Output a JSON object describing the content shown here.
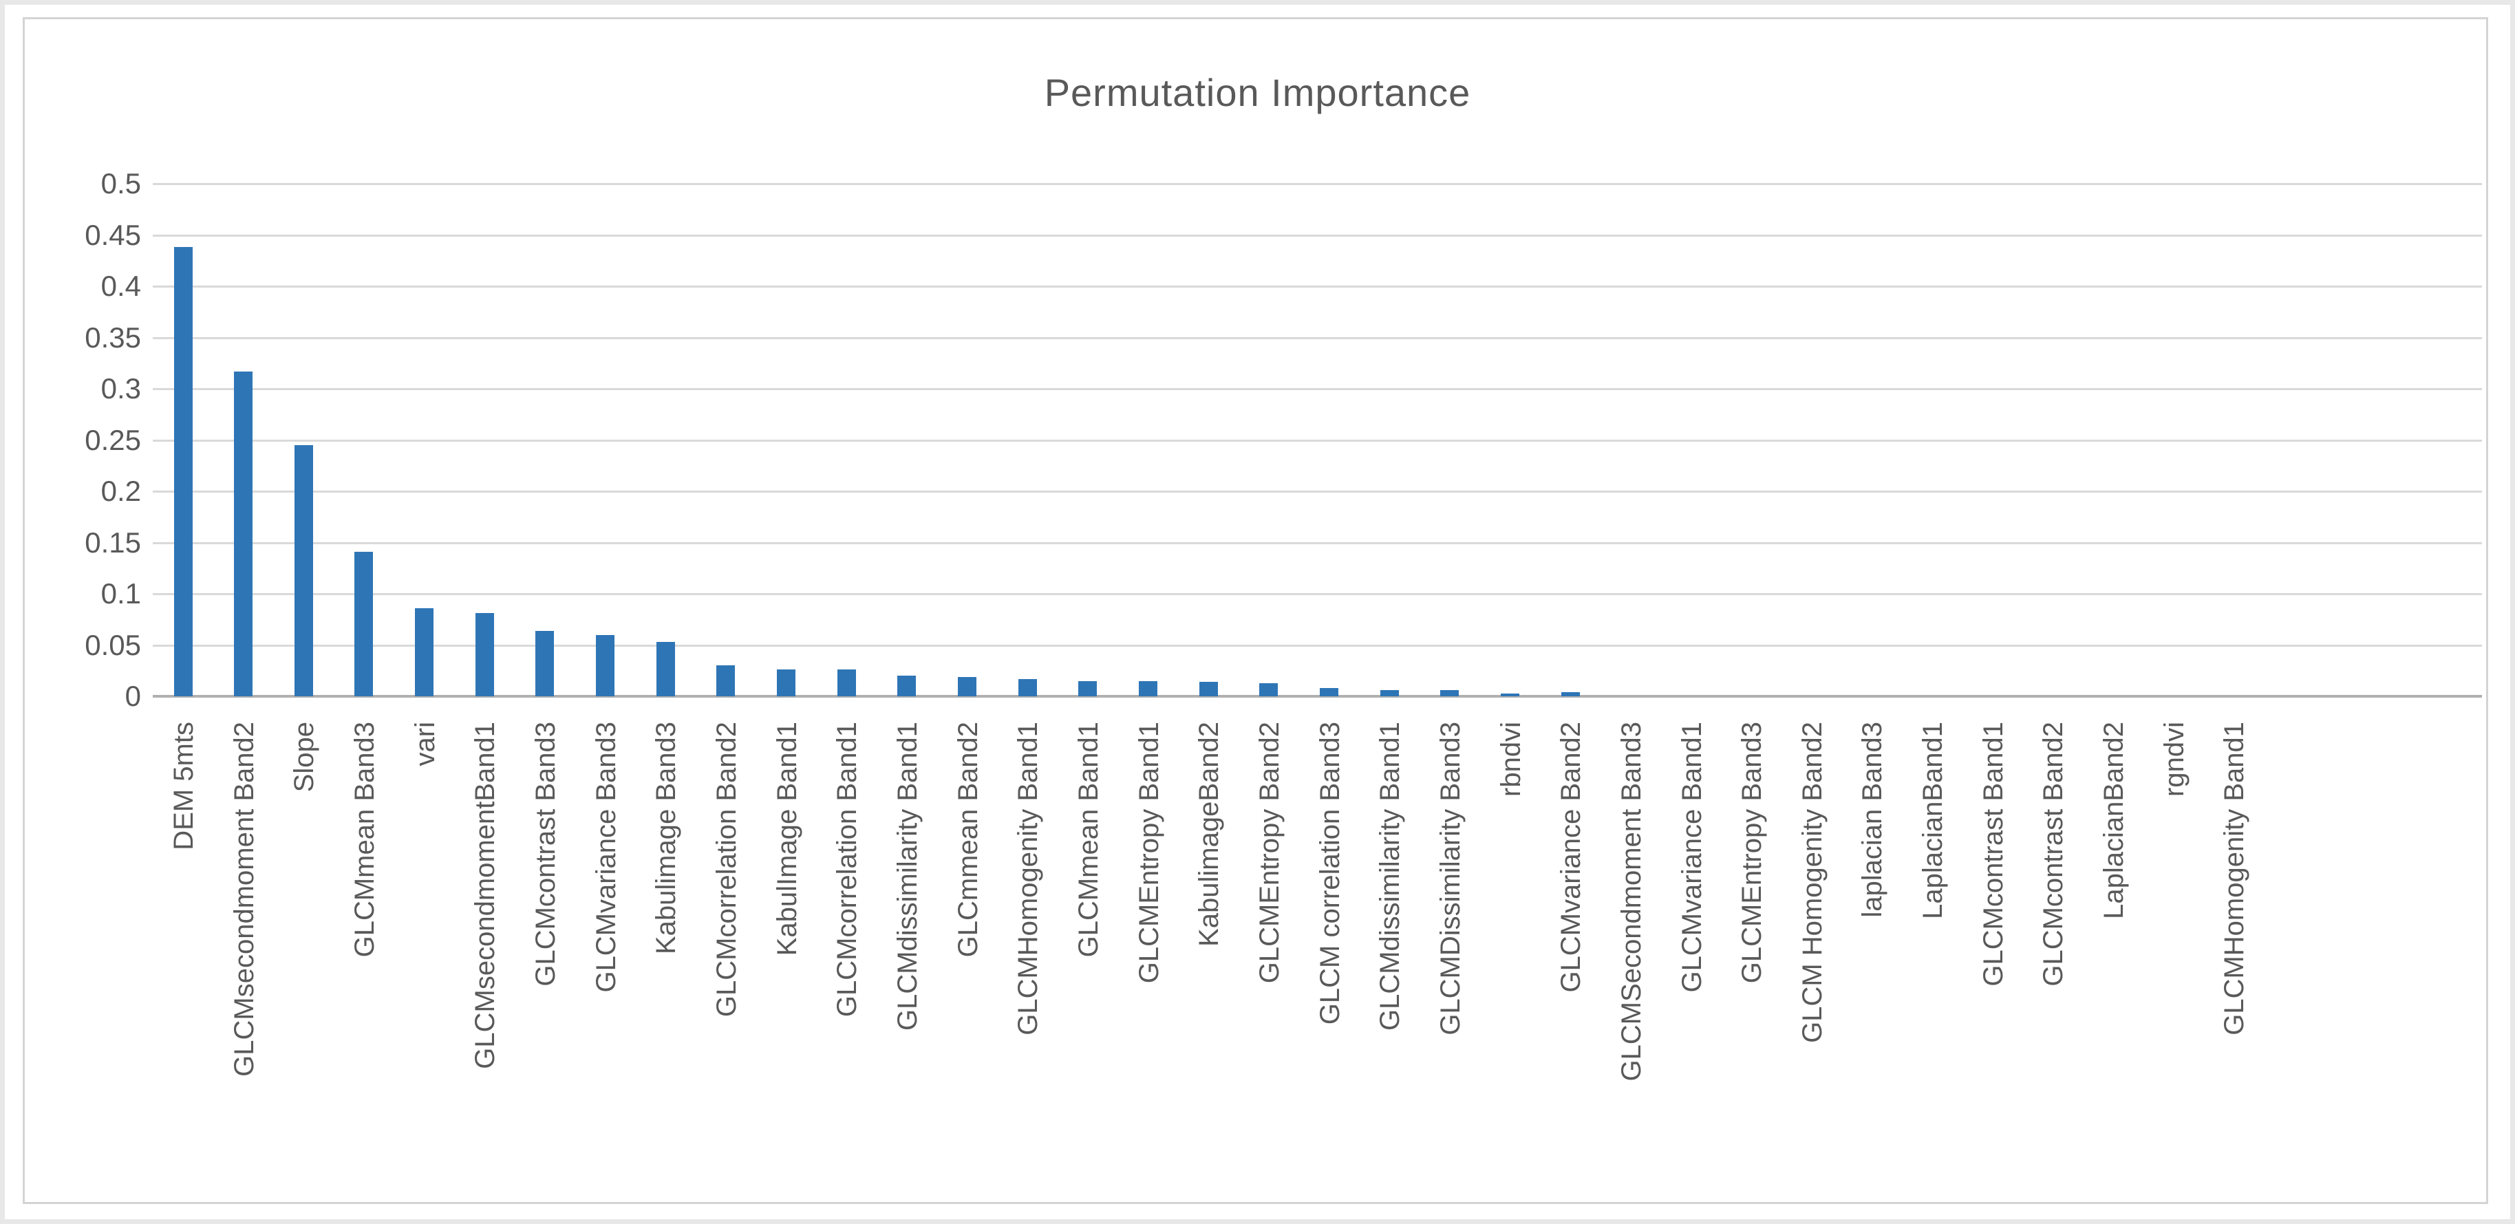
{
  "chart_data": {
    "type": "bar",
    "title": "Permutation Importance",
    "categories": [
      "DEM 5mts",
      "GLCMsecondmoment Band2",
      "Slope",
      "GLCMmean Band3",
      "vari",
      "GLCMsecondmomentBand1",
      "GLCMcontrast Band3",
      "GLCMvariance Band3",
      "Kabulimage Band3",
      "GLCMcorrelation Band2",
      "KabulImage Band1",
      "GLCMcorrelation Band1",
      "GLCMdissimilarity Band1",
      "GLCmmean Band2",
      "GLCMHomogenity Band1",
      "GLCMmean Band1",
      "GLCMEntropy Band1",
      "KabulimageBand2",
      "GLCMEntropy Band2",
      "GLCM correlation Band3",
      "GLCMdissimilarity Band1",
      "GLCMDissimilarity Band3",
      "rbndvi",
      "GLCMvariance Band2",
      "GLCMSecondmoment Band3",
      "GLCMvariance Band1",
      "GLCMEntropy Band3",
      "GLCM Homogenity Band2",
      "laplacian Band3",
      "LaplacianBand1",
      "GLCMcontrast Band1",
      "GLCMcontrast Band2",
      "LaplacianBand2",
      "rgndvi",
      "GLCMHomogenity Band1"
    ],
    "values": [
      0.438,
      0.317,
      0.245,
      0.141,
      0.086,
      0.081,
      0.064,
      0.06,
      0.053,
      0.03,
      0.026,
      0.026,
      0.02,
      0.019,
      0.017,
      0.015,
      0.015,
      0.014,
      0.013,
      0.008,
      0.006,
      0.006,
      0.003,
      0.004,
      0,
      0,
      0,
      0,
      0,
      0,
      0,
      0,
      0,
      0,
      0
    ],
    "xlabel": "",
    "ylabel": "",
    "ylim": [
      0,
      0.5
    ],
    "ytick_step": 0.05,
    "ytick_labels": [
      "0",
      "0.05",
      "0.1",
      "0.15",
      "0.2",
      "0.25",
      "0.3",
      "0.35",
      "0.4",
      "0.45",
      "0.5"
    ],
    "grid": true,
    "legend_position": "none",
    "bar_color": "#2E75B6",
    "text_color": "#595959",
    "gridline_color": "#D9D9D9",
    "axis_color": "#B0B0B0"
  }
}
